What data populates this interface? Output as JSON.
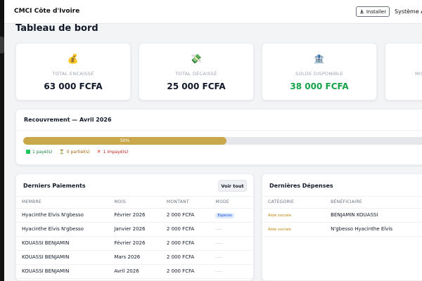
{
  "app": {
    "title": "CMCI Côte d'Ivoire",
    "install_label": "Installer",
    "system_label": "Système AB"
  },
  "page": {
    "title": "Tableau de bord"
  },
  "stats": [
    {
      "icon": "money-bag-icon",
      "glyph": "💰",
      "label": "TOTAL ENCAISSÉ",
      "value": "63 000 FCFA",
      "color": "#111827"
    },
    {
      "icon": "money-wings-icon",
      "glyph": "💸",
      "label": "TOTAL DÉCAISSÉ",
      "value": "25 000 FCFA",
      "color": "#111827"
    },
    {
      "icon": "bank-icon",
      "glyph": "🏦",
      "label": "SOLDE DISPONIBLE",
      "value": "38 000 FCFA",
      "color": "#16a34a"
    },
    {
      "label": "MIS"
    }
  ],
  "recouvrement": {
    "title": "Recouvrement — Avril 2026",
    "progress_label": "50%",
    "progress_fraction": 0.5,
    "paid": "1 payé(s)",
    "partial": "0 partiel(s)",
    "unpaid": "1 impayé(s)"
  },
  "payments": {
    "title": "Derniers Paiements",
    "view_all": "Voir tout",
    "columns": [
      "MEMBRE",
      "MOIS",
      "MONTANT",
      "MODE"
    ],
    "rows": [
      {
        "membre": "Hyacinthe Elvis N'gbesso",
        "mois": "Février 2026",
        "montant": "2 000 FCFA",
        "mode": "Especes"
      },
      {
        "membre": "Hyacinthe Elvis N'gbesso",
        "mois": "Janvier 2026",
        "montant": "2 000 FCFA",
        "mode": ""
      },
      {
        "membre": "KOUASSI BENJAMIN",
        "mois": "Février 2026",
        "montant": "2 000 FCFA",
        "mode": ""
      },
      {
        "membre": "KOUASSI BENJAMIN",
        "mois": "Mars 2026",
        "montant": "2 000 FCFA",
        "mode": ""
      },
      {
        "membre": "KOUASSI BENJAMIN",
        "mois": "Avril 2026",
        "montant": "2 000 FCFA",
        "mode": ""
      }
    ]
  },
  "expenses": {
    "title": "Dernières Dépenses",
    "columns": [
      "CATÉGORIE",
      "BÉNÉFICIAIRE"
    ],
    "rows": [
      {
        "categorie": "Aide sociale",
        "beneficiaire": "BENJAMIN KOUASSI"
      },
      {
        "categorie": "Aide sociale",
        "beneficiaire": "N'gbesso Hyacinthe Elvis"
      }
    ]
  }
}
